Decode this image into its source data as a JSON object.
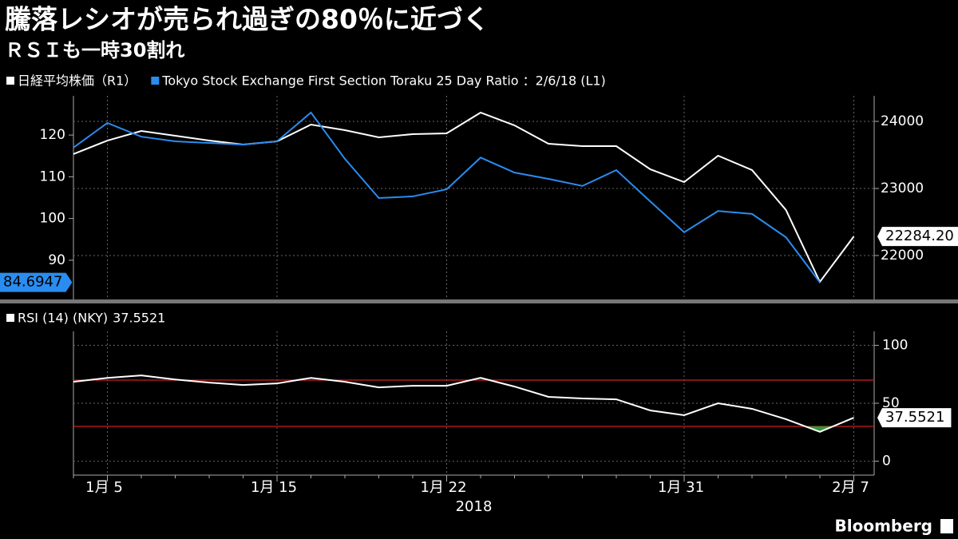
{
  "title": "騰落レシオが売られ過ぎの80％に近づく",
  "subtitle": "ＲＳＩも一時30割れ",
  "source": "Bloomberg",
  "chart_data": [
    {
      "type": "line",
      "ylim": [
        80.6,
        129.4
      ],
      "yticks": [
        90,
        100,
        110,
        120
      ],
      "y2lim": [
        21345,
        24381
      ],
      "y2ticks": [
        22000,
        23000,
        24000
      ],
      "grid": true,
      "series": [
        {
          "name": "日経平均株価（R1）",
          "color": "#ffffff",
          "axis": "y2",
          "values": [
            23512,
            23714,
            23857,
            23786,
            23714,
            23655,
            23702,
            23952,
            23869,
            23762,
            23810,
            23821,
            24131,
            23940,
            23667,
            23631,
            23631,
            23286,
            23095,
            23488,
            23274,
            22679,
            21607,
            22284.2
          ],
          "value_labels": [
            null,
            null,
            null,
            null,
            null,
            null,
            null,
            null,
            null,
            null,
            null,
            null,
            null,
            null,
            null,
            null,
            null,
            null,
            null,
            null,
            null,
            null,
            null,
            "22284.20"
          ]
        },
        {
          "name": "Tokyo Stock Exchange First Section Toraku 25 Day Ratio ：2/6/18 (L1)",
          "color": "#2a8cf0",
          "axis": "y",
          "values": [
            117.0,
            122.9,
            119.6,
            118.5,
            118.1,
            117.7,
            118.5,
            125.4,
            114.3,
            104.9,
            105.3,
            107.0,
            114.6,
            111.0,
            109.5,
            107.8,
            111.6,
            104.1,
            96.7,
            101.8,
            101.1,
            95.5,
            84.6947,
            null
          ]
        }
      ]
    },
    {
      "type": "line",
      "categories": [
        null,
        "1月 5",
        null,
        null,
        null,
        null,
        "1月 15",
        null,
        null,
        null,
        null,
        "1月 22",
        null,
        null,
        null,
        null,
        null,
        null,
        "1月 31",
        null,
        null,
        null,
        null,
        "2月 7"
      ],
      "x_label": "2018",
      "ylim": [
        -12,
        112
      ],
      "yticks": [
        0,
        50,
        100
      ],
      "grid": true,
      "levels": [
        70,
        30
      ],
      "level_color": "#d01f1f",
      "below_color": "#2e9a3a",
      "series": [
        {
          "name": "RSI (14) (NKY)",
          "color": "#ffffff",
          "values": [
            68.5,
            71.9,
            74.0,
            70.5,
            67.8,
            65.8,
            67.1,
            71.9,
            68.5,
            63.7,
            65.1,
            65.1,
            71.9,
            64.4,
            55.5,
            54.1,
            53.4,
            43.8,
            39.7,
            50.0,
            45.2,
            36.3,
            25.3,
            37.5521
          ]
        }
      ]
    }
  ]
}
